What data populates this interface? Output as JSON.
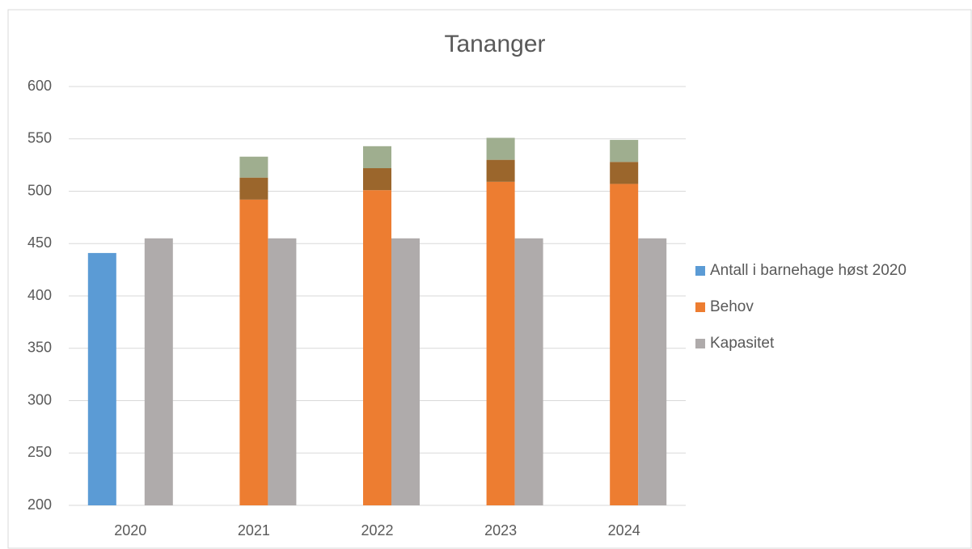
{
  "chart_data": {
    "type": "bar",
    "title": "Tananger",
    "categories": [
      "2020",
      "2021",
      "2022",
      "2023",
      "2024"
    ],
    "series": [
      {
        "name": "Antall i barnehage høst 2020",
        "color": "#5b9bd5",
        "values": [
          441,
          null,
          null,
          null,
          null
        ]
      },
      {
        "name": "Behov",
        "color": "#ed7d31",
        "values": [
          null,
          492,
          501,
          509,
          507
        ]
      },
      {
        "color": "#9b662c",
        "values": [
          null,
          21,
          21,
          21,
          21
        ]
      },
      {
        "color": "#9fae8f",
        "values": [
          null,
          20,
          21,
          21,
          21
        ]
      },
      {
        "name": "Kapasitet",
        "color": "#afabab",
        "values": [
          455,
          455,
          455,
          455,
          455
        ]
      }
    ],
    "ylim": [
      200,
      600
    ],
    "yticks": [
      200,
      250,
      300,
      350,
      400,
      450,
      500,
      550,
      600
    ],
    "grid": true,
    "legend": "right"
  }
}
